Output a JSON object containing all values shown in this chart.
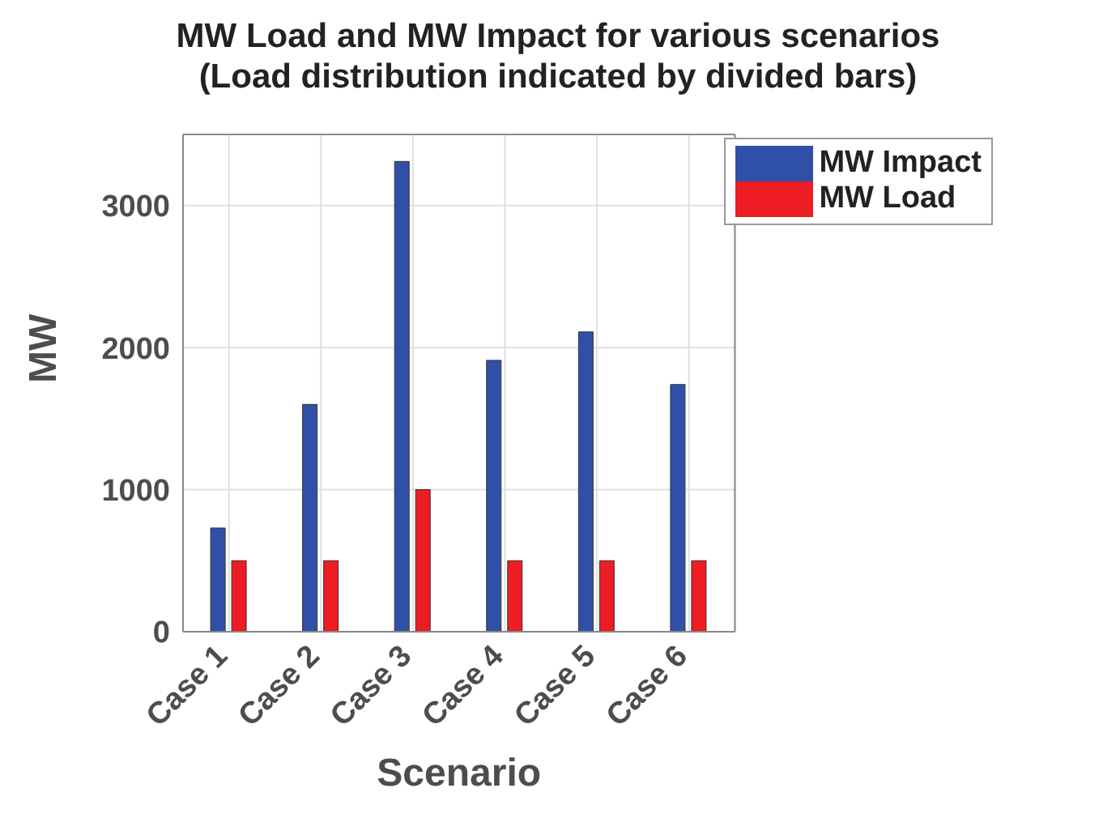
{
  "chart_data": {
    "type": "bar",
    "title": "MW Load and MW Impact for various scenarios\n(Load distribution indicated by divided bars)",
    "xlabel": "Scenario",
    "ylabel": "MW",
    "categories": [
      "Case 1",
      "Case 2",
      "Case 3",
      "Case 4",
      "Case 5",
      "Case 6"
    ],
    "series": [
      {
        "name": "MW Impact",
        "color": "#3050a8",
        "values": [
          730,
          1600,
          3310,
          1910,
          2110,
          1740
        ]
      },
      {
        "name": "MW Load",
        "color": "#ee1c23",
        "values": [
          500,
          500,
          1000,
          500,
          500,
          500
        ]
      }
    ],
    "ylim": [
      0,
      3500
    ],
    "yticks": [
      0,
      1000,
      2000,
      3000
    ],
    "grid": true,
    "legend": "top right"
  }
}
